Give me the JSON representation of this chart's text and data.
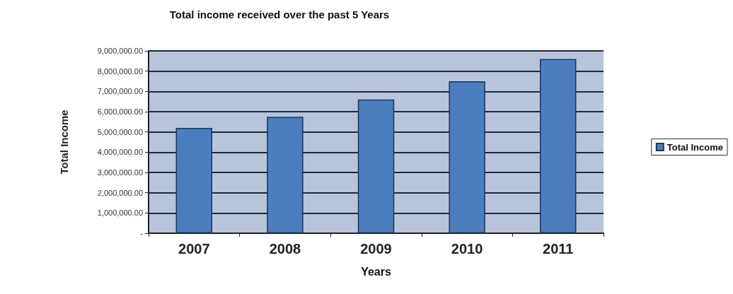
{
  "chart_data": {
    "type": "bar",
    "title": "Total income received over the past 5 Years",
    "xlabel": "Years",
    "ylabel": "Total Income",
    "categories": [
      "2007",
      "2008",
      "2009",
      "2010",
      "2011"
    ],
    "series": [
      {
        "name": "Total Income",
        "color": "#4a7ebf",
        "values": [
          5200000,
          5750000,
          6600000,
          7500000,
          8600000
        ]
      }
    ],
    "ylim": [
      0,
      9000000
    ],
    "yticks": [
      {
        "value": 0,
        "label": "-"
      },
      {
        "value": 1000000,
        "label": "1,000,000.00"
      },
      {
        "value": 2000000,
        "label": "2,000,000.00"
      },
      {
        "value": 3000000,
        "label": "3,000,000.00"
      },
      {
        "value": 4000000,
        "label": "4,000,000.00"
      },
      {
        "value": 5000000,
        "label": "5,000,000.00"
      },
      {
        "value": 6000000,
        "label": "6,000,000.00"
      },
      {
        "value": 7000000,
        "label": "7,000,000.00"
      },
      {
        "value": 8000000,
        "label": "8,000,000.00"
      },
      {
        "value": 9000000,
        "label": "9,000,000.00"
      }
    ],
    "grid": "y",
    "legend": "right"
  }
}
